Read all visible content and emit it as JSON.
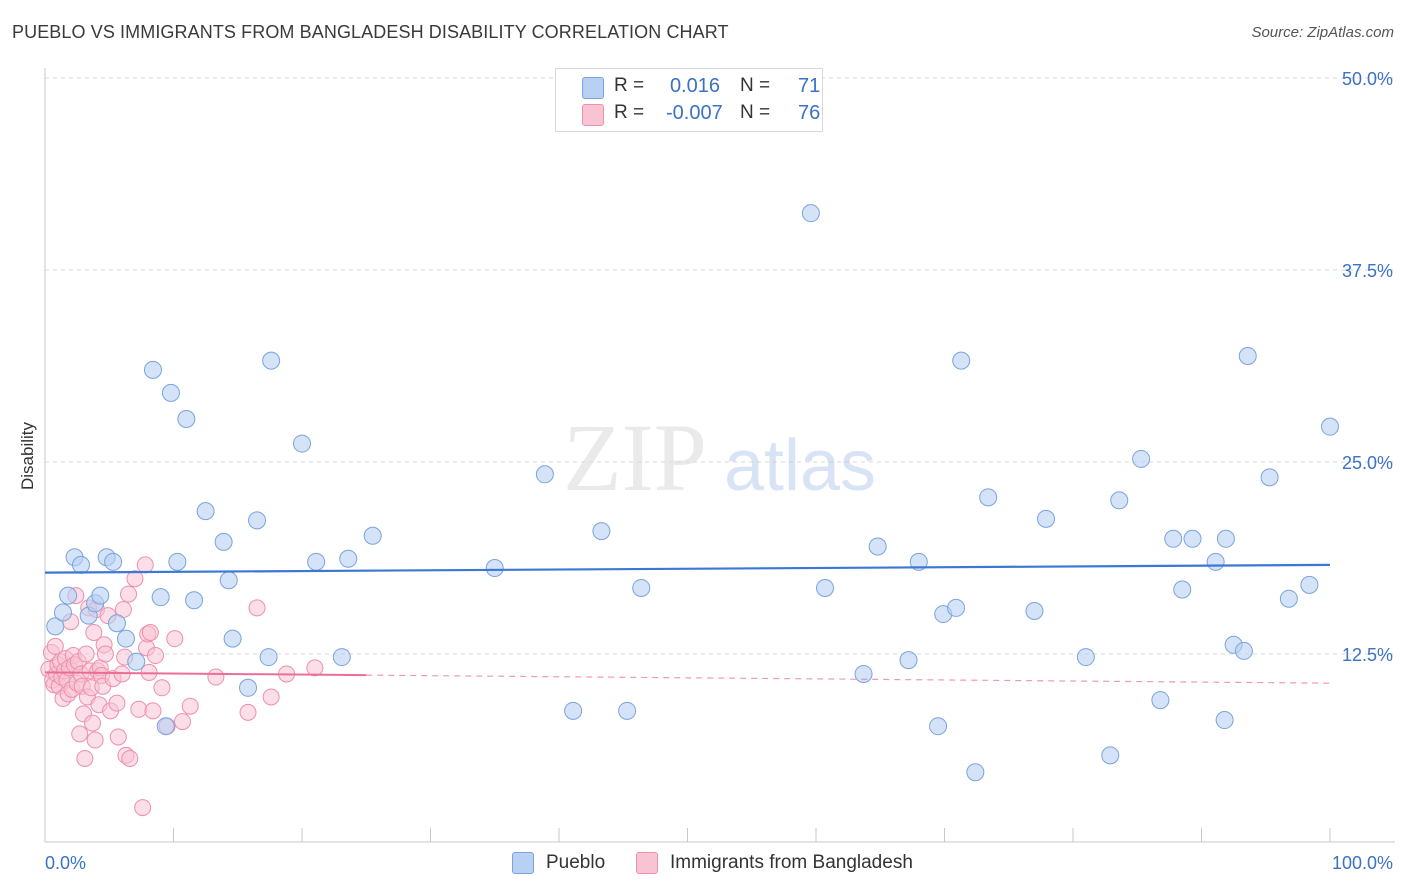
{
  "title": "PUEBLO VS IMMIGRANTS FROM BANGLADESH DISABILITY CORRELATION CHART",
  "source": "Source: ZipAtlas.com",
  "watermark": {
    "zip": "ZIP",
    "atlas": "atlas"
  },
  "legend": {
    "r_label": "R =",
    "n_label": "N =",
    "pueblo": {
      "r": "0.016",
      "n": "71"
    },
    "bangladesh": {
      "r": "-0.007",
      "n": "76"
    }
  },
  "bottom_legend": {
    "pueblo": "Pueblo",
    "bangladesh": "Immigrants from Bangladesh"
  },
  "colors": {
    "pueblo_fill": "#b8d1f3",
    "pueblo_edge": "#7aa3dc",
    "pueblo_line": "#3a78d4",
    "bangladesh_fill": "#f8c3d3",
    "bangladesh_edge": "#ee8fad",
    "bangladesh_line": "#ea6f97",
    "axis_text": "#3a72c4",
    "grid": "#d9d9d9"
  },
  "chart_data": {
    "type": "scatter",
    "title": "PUEBLO VS IMMIGRANTS FROM BANGLADESH DISABILITY CORRELATION CHART",
    "xlabel": "",
    "ylabel": "Disability",
    "xlim": [
      0,
      100
    ],
    "ylim": [
      0,
      50
    ],
    "x_tick_labels": [
      "0.0%",
      "100.0%"
    ],
    "y_ticks": [
      12.5,
      25.0,
      37.5,
      50.0
    ],
    "y_tick_labels": [
      "12.5%",
      "25.0%",
      "37.5%",
      "50.0%"
    ],
    "grid": true,
    "series": [
      {
        "name": "Pueblo",
        "r": 0.016,
        "n": 71,
        "trend": {
          "x": [
            0,
            100
          ],
          "y": [
            17.8,
            18.3
          ]
        },
        "points": [
          [
            0.8,
            14.3
          ],
          [
            1.4,
            15.2
          ],
          [
            1.8,
            16.3
          ],
          [
            2.3,
            18.8
          ],
          [
            2.8,
            18.3
          ],
          [
            3.4,
            15.0
          ],
          [
            3.9,
            15.8
          ],
          [
            4.3,
            16.3
          ],
          [
            4.8,
            18.8
          ],
          [
            5.3,
            18.5
          ],
          [
            5.6,
            14.5
          ],
          [
            6.3,
            13.5
          ],
          [
            7.1,
            12.0
          ],
          [
            8.4,
            31.0
          ],
          [
            9.0,
            16.2
          ],
          [
            9.4,
            7.8
          ],
          [
            9.8,
            29.5
          ],
          [
            10.3,
            18.5
          ],
          [
            11.0,
            27.8
          ],
          [
            11.6,
            16.0
          ],
          [
            12.5,
            21.8
          ],
          [
            13.9,
            19.8
          ],
          [
            14.3,
            17.3
          ],
          [
            14.6,
            13.5
          ],
          [
            15.8,
            10.3
          ],
          [
            16.5,
            21.2
          ],
          [
            17.4,
            12.3
          ],
          [
            17.6,
            31.6
          ],
          [
            20.0,
            26.2
          ],
          [
            21.1,
            18.5
          ],
          [
            23.1,
            12.3
          ],
          [
            23.6,
            18.7
          ],
          [
            25.5,
            20.2
          ],
          [
            35.0,
            18.1
          ],
          [
            38.9,
            24.2
          ],
          [
            41.1,
            8.8
          ],
          [
            43.3,
            20.5
          ],
          [
            45.3,
            8.8
          ],
          [
            46.4,
            16.8
          ],
          [
            59.6,
            41.2
          ],
          [
            60.7,
            16.8
          ],
          [
            63.7,
            11.2
          ],
          [
            64.8,
            19.5
          ],
          [
            67.2,
            12.1
          ],
          [
            68.0,
            18.5
          ],
          [
            69.5,
            7.8
          ],
          [
            69.9,
            15.1
          ],
          [
            70.9,
            15.5
          ],
          [
            71.3,
            31.6
          ],
          [
            72.4,
            4.8
          ],
          [
            73.4,
            22.7
          ],
          [
            77.0,
            15.3
          ],
          [
            77.9,
            21.3
          ],
          [
            81.0,
            12.3
          ],
          [
            82.9,
            5.9
          ],
          [
            83.6,
            22.5
          ],
          [
            85.3,
            25.2
          ],
          [
            86.8,
            9.5
          ],
          [
            87.8,
            20.0
          ],
          [
            88.5,
            16.7
          ],
          [
            89.3,
            20.0
          ],
          [
            91.1,
            18.5
          ],
          [
            91.8,
            8.2
          ],
          [
            91.9,
            20.0
          ],
          [
            92.5,
            13.1
          ],
          [
            93.3,
            12.7
          ],
          [
            93.6,
            31.9
          ],
          [
            95.3,
            24.0
          ],
          [
            96.8,
            16.1
          ],
          [
            98.4,
            17.0
          ],
          [
            100.0,
            27.3
          ]
        ]
      },
      {
        "name": "Immigrants from Bangladesh",
        "r": -0.007,
        "n": 76,
        "trend": {
          "x": [
            0,
            100
          ],
          "y": [
            11.3,
            10.6
          ],
          "solid_until_x": 25
        },
        "points": [
          [
            0.3,
            11.5
          ],
          [
            0.5,
            12.6
          ],
          [
            0.6,
            10.8
          ],
          [
            0.7,
            10.5
          ],
          [
            0.8,
            13.0
          ],
          [
            0.9,
            11.2
          ],
          [
            1.0,
            11.8
          ],
          [
            1.1,
            10.4
          ],
          [
            1.2,
            12.0
          ],
          [
            1.3,
            11.0
          ],
          [
            1.4,
            9.6
          ],
          [
            1.5,
            11.4
          ],
          [
            1.6,
            12.2
          ],
          [
            1.7,
            10.8
          ],
          [
            1.8,
            9.9
          ],
          [
            1.9,
            11.6
          ],
          [
            2.0,
            14.6
          ],
          [
            2.1,
            10.2
          ],
          [
            2.2,
            12.4
          ],
          [
            2.3,
            11.8
          ],
          [
            2.4,
            16.3
          ],
          [
            2.5,
            10.6
          ],
          [
            2.6,
            12.0
          ],
          [
            2.7,
            7.3
          ],
          [
            2.8,
            11.2
          ],
          [
            2.9,
            10.4
          ],
          [
            3.0,
            8.6
          ],
          [
            3.1,
            5.7
          ],
          [
            3.2,
            12.5
          ],
          [
            3.3,
            9.7
          ],
          [
            3.4,
            15.5
          ],
          [
            3.5,
            11.4
          ],
          [
            3.6,
            10.3
          ],
          [
            3.7,
            8.0
          ],
          [
            3.8,
            13.9
          ],
          [
            3.9,
            6.9
          ],
          [
            4.0,
            15.4
          ],
          [
            4.1,
            11.4
          ],
          [
            4.2,
            9.2
          ],
          [
            4.3,
            11.6
          ],
          [
            4.4,
            11.1
          ],
          [
            4.5,
            10.4
          ],
          [
            4.6,
            13.1
          ],
          [
            4.7,
            12.5
          ],
          [
            4.9,
            15.0
          ],
          [
            5.1,
            8.8
          ],
          [
            5.3,
            10.9
          ],
          [
            5.6,
            9.3
          ],
          [
            5.7,
            7.1
          ],
          [
            6.0,
            11.2
          ],
          [
            6.1,
            15.4
          ],
          [
            6.2,
            12.3
          ],
          [
            6.3,
            5.9
          ],
          [
            6.5,
            16.4
          ],
          [
            6.6,
            5.7
          ],
          [
            7.0,
            17.4
          ],
          [
            7.3,
            8.9
          ],
          [
            7.6,
            2.5
          ],
          [
            7.8,
            18.3
          ],
          [
            7.9,
            12.9
          ],
          [
            8.0,
            13.8
          ],
          [
            8.1,
            11.3
          ],
          [
            8.2,
            13.9
          ],
          [
            8.4,
            8.8
          ],
          [
            8.6,
            12.4
          ],
          [
            9.1,
            10.3
          ],
          [
            9.5,
            7.8
          ],
          [
            10.1,
            13.5
          ],
          [
            10.7,
            8.1
          ],
          [
            11.3,
            9.1
          ],
          [
            15.8,
            8.7
          ],
          [
            16.5,
            15.5
          ],
          [
            17.6,
            9.7
          ],
          [
            18.8,
            11.2
          ],
          [
            21.0,
            11.6
          ],
          [
            13.3,
            11.0
          ]
        ]
      }
    ]
  }
}
